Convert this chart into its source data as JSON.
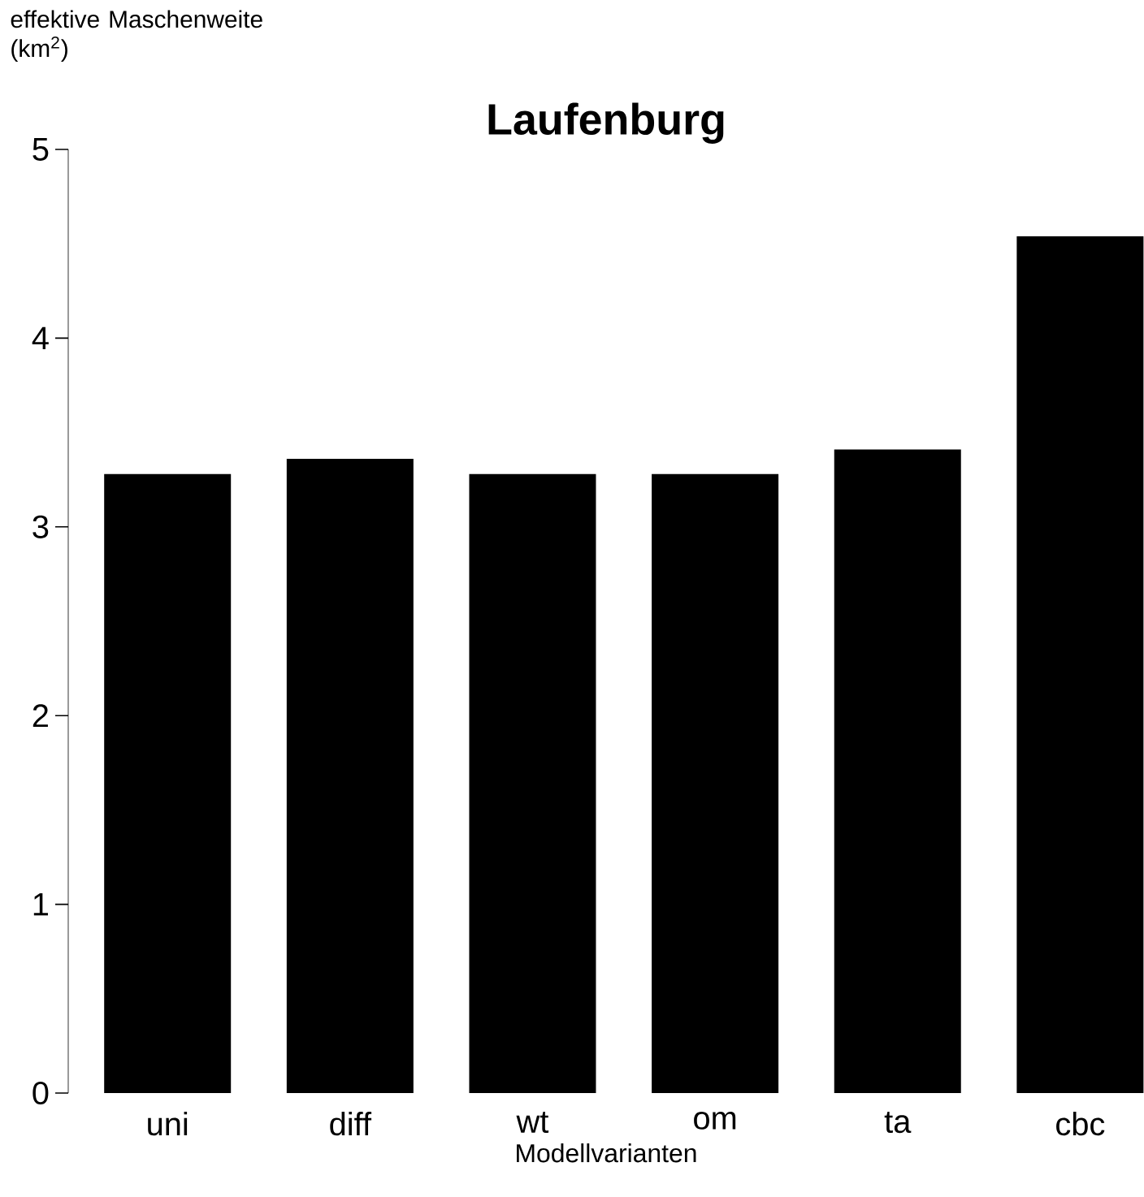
{
  "chart_data": {
    "type": "bar",
    "title": "Laufenburg",
    "xlabel": "Modellvarianten",
    "ylabel": "effektive Maschenweite (km$^{2}$)",
    "categories": [
      "uni",
      "diff",
      "wt",
      "om",
      "ta",
      "cbc"
    ],
    "values": [
      3.28,
      3.36,
      3.28,
      3.28,
      3.41,
      4.54
    ],
    "color": "#000000",
    "ylim": [
      0,
      5
    ],
    "yticks": [
      0,
      1,
      2,
      3,
      4,
      5
    ],
    "grid": false
  }
}
